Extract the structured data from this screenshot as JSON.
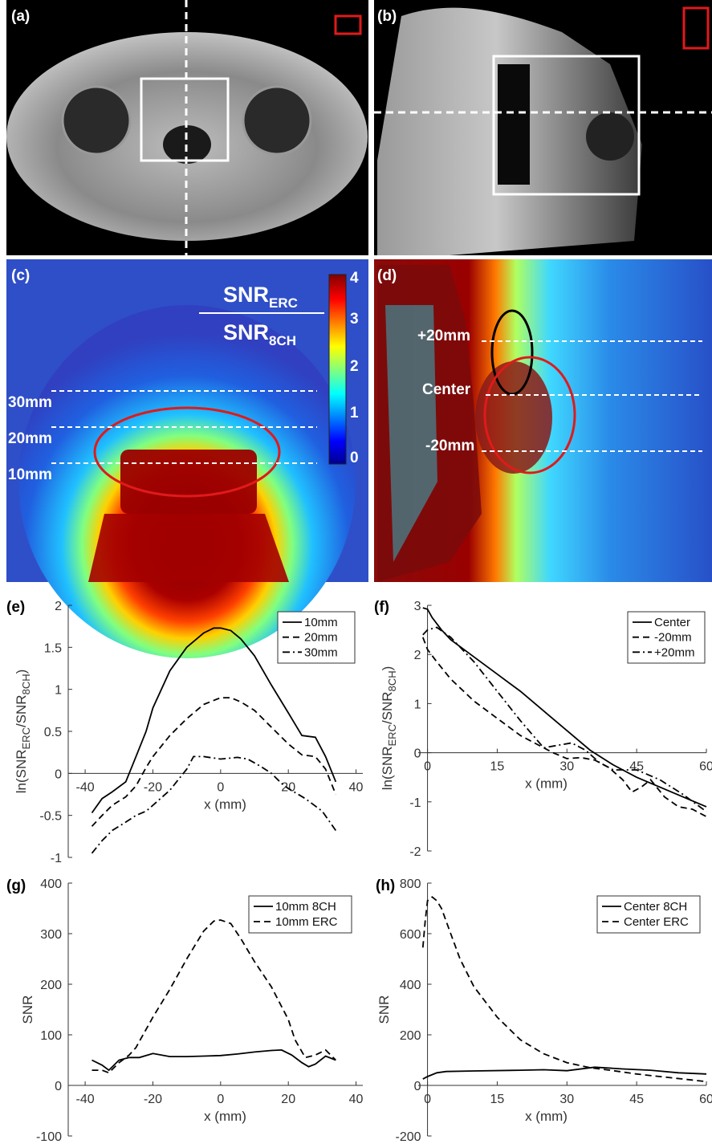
{
  "panels": {
    "a": "(a)",
    "b": "(b)",
    "c": "(c)",
    "d": "(d)",
    "e": "(e)",
    "f": "(f)",
    "g": "(g)",
    "h": "(h)"
  },
  "images": {
    "c": {
      "ratio_top": "SNR",
      "ratio_top_sub": "ERC",
      "ratio_bottom": "SNR",
      "ratio_bottom_sub": "8CH",
      "colorbar_ticks": [
        "4",
        "3",
        "2",
        "1",
        "0"
      ],
      "line_labels": [
        "30mm",
        "20mm",
        "10mm"
      ]
    },
    "d": {
      "line_labels": [
        "+20mm",
        "Center",
        "-20mm"
      ]
    }
  },
  "colors": {
    "roi_red": "#e01a1a",
    "dashed_white": "#ffffff",
    "colormap": "jet"
  },
  "chart_data": [
    {
      "id": "e",
      "type": "line",
      "xlabel": "x (mm)",
      "ylabel": "ln(SNR_ERC/SNR_8CH)",
      "ylabel_parts": [
        "ln(SNR",
        "ERC",
        "/SNR",
        "8CH",
        ")"
      ],
      "xlim": [
        -45,
        42
      ],
      "ylim": [
        -1,
        2
      ],
      "xticks": [
        "-40",
        "-20",
        "0",
        "20",
        "40"
      ],
      "xtick_values": [
        -40,
        -20,
        0,
        20,
        40
      ],
      "yticks": [
        "-1",
        "-0.5",
        "0",
        "0.5",
        "1",
        "1.5",
        "2"
      ],
      "ytick_values": [
        -1,
        -0.5,
        0,
        0.5,
        1,
        1.5,
        2
      ],
      "legend_position": "top-right",
      "series": [
        {
          "name": "10mm",
          "style": "solid",
          "x": [
            -38,
            -35,
            -32,
            -28,
            -25,
            -22,
            -20,
            -15,
            -10,
            -5,
            -2,
            0,
            3,
            6,
            10,
            15,
            20,
            24,
            28,
            31,
            34
          ],
          "y": [
            -0.47,
            -0.3,
            -0.22,
            -0.1,
            0.2,
            0.5,
            0.78,
            1.22,
            1.5,
            1.67,
            1.73,
            1.73,
            1.7,
            1.6,
            1.4,
            1.05,
            0.72,
            0.45,
            0.43,
            0.2,
            -0.1
          ]
        },
        {
          "name": "20mm",
          "style": "dashed",
          "x": [
            -38,
            -35,
            -32,
            -28,
            -25,
            -22,
            -20,
            -15,
            -10,
            -5,
            0,
            3,
            6,
            10,
            15,
            20,
            24,
            28,
            31,
            34
          ],
          "y": [
            -0.63,
            -0.5,
            -0.38,
            -0.28,
            -0.15,
            0.07,
            0.2,
            0.45,
            0.65,
            0.82,
            0.9,
            0.9,
            0.85,
            0.75,
            0.55,
            0.35,
            0.22,
            0.2,
            0.05,
            -0.25
          ]
        },
        {
          "name": "30mm",
          "style": "dashdot",
          "x": [
            -38,
            -35,
            -32,
            -28,
            -25,
            -22,
            -20,
            -15,
            -10,
            -8,
            -5,
            0,
            5,
            8,
            12,
            15,
            18,
            20,
            25,
            30,
            34
          ],
          "y": [
            -0.95,
            -0.8,
            -0.68,
            -0.58,
            -0.5,
            -0.45,
            -0.38,
            -0.2,
            0.05,
            0.2,
            0.2,
            0.17,
            0.19,
            0.17,
            0.08,
            0.0,
            -0.12,
            -0.18,
            -0.3,
            -0.45,
            -0.68
          ]
        }
      ]
    },
    {
      "id": "f",
      "type": "line",
      "xlabel": "x (mm)",
      "ylabel": "ln(SNR_ERC/SNR_8CH)",
      "ylabel_parts": [
        "ln(SNR",
        "ERC",
        "/SNR",
        "8CH",
        ")"
      ],
      "xlim": [
        -2,
        60
      ],
      "ylim": [
        -2,
        3
      ],
      "xticks": [
        "0",
        "15",
        "30",
        "45",
        "60"
      ],
      "xtick_values": [
        0,
        15,
        30,
        45,
        60
      ],
      "yticks": [
        "-2",
        "-1",
        "0",
        "1",
        "2",
        "3"
      ],
      "ytick_values": [
        -2,
        -1,
        0,
        1,
        2,
        3
      ],
      "legend_position": "top-right",
      "series": [
        {
          "name": "Center",
          "style": "solid",
          "x": [
            -1,
            0,
            1,
            3,
            5,
            10,
            15,
            20,
            25,
            30,
            35,
            40,
            45,
            50,
            55,
            60
          ],
          "y": [
            2.95,
            2.92,
            2.75,
            2.5,
            2.3,
            1.95,
            1.6,
            1.25,
            0.85,
            0.45,
            0.05,
            -0.25,
            -0.5,
            -0.7,
            -0.9,
            -1.1
          ]
        },
        {
          "name": "-20mm",
          "style": "dashed",
          "x": [
            -1,
            0,
            2,
            5,
            10,
            15,
            20,
            25,
            27,
            30,
            33,
            36,
            39,
            42,
            44,
            46,
            48,
            51,
            54,
            57,
            60
          ],
          "y": [
            2.35,
            2.1,
            1.85,
            1.5,
            1.05,
            0.7,
            0.35,
            0.1,
            0.0,
            -0.12,
            -0.1,
            -0.15,
            -0.3,
            -0.55,
            -0.8,
            -0.7,
            -0.55,
            -0.9,
            -1.1,
            -1.15,
            -1.3
          ]
        },
        {
          "name": "+20mm",
          "style": "dashdot",
          "x": [
            -1,
            0,
            2,
            5,
            10,
            15,
            20,
            25,
            28,
            31,
            34,
            37,
            40,
            45,
            50,
            55,
            60
          ],
          "y": [
            2.4,
            2.5,
            2.55,
            2.35,
            1.85,
            1.25,
            0.65,
            0.1,
            0.15,
            0.2,
            0.05,
            -0.2,
            -0.35,
            -0.35,
            -0.55,
            -0.85,
            -1.2
          ]
        }
      ]
    },
    {
      "id": "g",
      "type": "line",
      "xlabel": "x (mm)",
      "ylabel": "SNR",
      "xlim": [
        -45,
        42
      ],
      "ylim": [
        -100,
        400
      ],
      "xticks": [
        "-40",
        "-20",
        "0",
        "20",
        "40"
      ],
      "xtick_values": [
        -40,
        -20,
        0,
        20,
        40
      ],
      "yticks": [
        "-100",
        "0",
        "100",
        "200",
        "300",
        "400"
      ],
      "ytick_values": [
        -100,
        0,
        100,
        200,
        300,
        400
      ],
      "legend_position": "top-right",
      "series": [
        {
          "name": "10mm 8CH",
          "style": "solid",
          "x": [
            -38,
            -35,
            -33,
            -30,
            -27,
            -24,
            -20,
            -15,
            -10,
            -5,
            0,
            5,
            10,
            15,
            18,
            21,
            24,
            26,
            28,
            31,
            34
          ],
          "y": [
            50,
            40,
            30,
            50,
            55,
            55,
            63,
            57,
            57,
            58,
            59,
            62,
            66,
            69,
            70,
            60,
            45,
            37,
            42,
            58,
            50
          ]
        },
        {
          "name": "10mm ERC",
          "style": "dashed",
          "x": [
            -38,
            -35,
            -33,
            -30,
            -27,
            -25,
            -20,
            -15,
            -10,
            -5,
            -2,
            0,
            3,
            6,
            10,
            15,
            20,
            22,
            25,
            28,
            31,
            34
          ],
          "y": [
            30,
            30,
            25,
            45,
            60,
            75,
            135,
            190,
            250,
            305,
            325,
            327,
            320,
            290,
            245,
            195,
            130,
            90,
            55,
            60,
            70,
            50
          ]
        }
      ]
    },
    {
      "id": "h",
      "type": "line",
      "xlabel": "x (mm)",
      "ylabel": "SNR",
      "xlim": [
        -2,
        60
      ],
      "ylim": [
        -200,
        800
      ],
      "xticks": [
        "0",
        "15",
        "30",
        "45",
        "60"
      ],
      "xtick_values": [
        0,
        15,
        30,
        45,
        60
      ],
      "yticks": [
        "-200",
        "0",
        "200",
        "400",
        "600",
        "800"
      ],
      "ytick_values": [
        -200,
        0,
        200,
        400,
        600,
        800
      ],
      "legend_position": "top-right",
      "series": [
        {
          "name": "Center 8CH",
          "style": "solid",
          "x": [
            -1,
            0,
            2,
            4,
            10,
            20,
            25,
            30,
            36,
            42,
            48,
            54,
            60
          ],
          "y": [
            25,
            35,
            50,
            55,
            57,
            60,
            62,
            58,
            72,
            65,
            60,
            50,
            45
          ]
        },
        {
          "name": "Center ERC",
          "style": "dashed",
          "x": [
            -1,
            -0.5,
            0,
            1,
            2,
            3,
            5,
            7,
            10,
            15,
            20,
            25,
            30,
            35,
            40,
            45,
            50,
            55,
            60
          ],
          "y": [
            545,
            650,
            730,
            745,
            730,
            700,
            600,
            500,
            390,
            270,
            180,
            125,
            90,
            70,
            58,
            45,
            35,
            25,
            15
          ]
        }
      ]
    }
  ]
}
